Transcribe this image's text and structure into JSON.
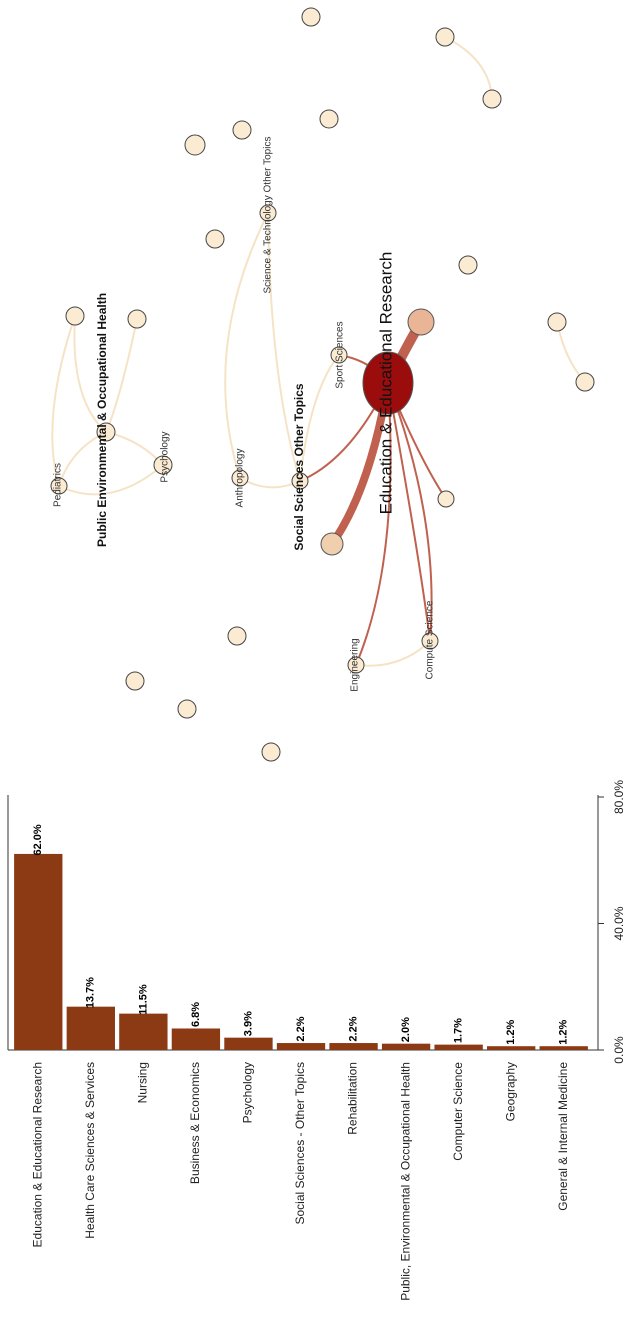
{
  "chart_data": {
    "type": "bar",
    "categories": [
      "Education & Educational Research",
      "Health Care Sciences & Services",
      "Nursing",
      "Business & Economics",
      "Psychology",
      "Social Sciences - Other Topics",
      "Rehabilitation",
      "Public, Environmental & Occupational Health",
      "Computer Science",
      "Geography",
      "General & Internal Medicine"
    ],
    "values": [
      62.0,
      13.7,
      11.5,
      6.8,
      3.9,
      2.2,
      2.2,
      2.0,
      1.7,
      1.2,
      1.2
    ],
    "value_labels": [
      "62.0%",
      "13.7%",
      "11.5%",
      "6.8%",
      "3.9%",
      "2.2%",
      "2.2%",
      "2.0%",
      "1.7%",
      "1.2%",
      "1.2%"
    ],
    "color": "#8b3a14",
    "ylim": [
      0,
      80
    ],
    "yticks": [
      {
        "value": 0,
        "label": "0.0%"
      },
      {
        "value": 40,
        "label": "40.0%"
      },
      {
        "value": 80,
        "label": "80.0%"
      }
    ]
  },
  "network": {
    "labels": [
      "Public Environmental & Occupational Health",
      "Pediatrics",
      "Psychology",
      "Anthropology",
      "Social Sciences Other Topics",
      "Science & Technology Other Topics",
      "Sport Sciences",
      "Education & Educational Research",
      "Engineering",
      "Compute Science"
    ]
  }
}
